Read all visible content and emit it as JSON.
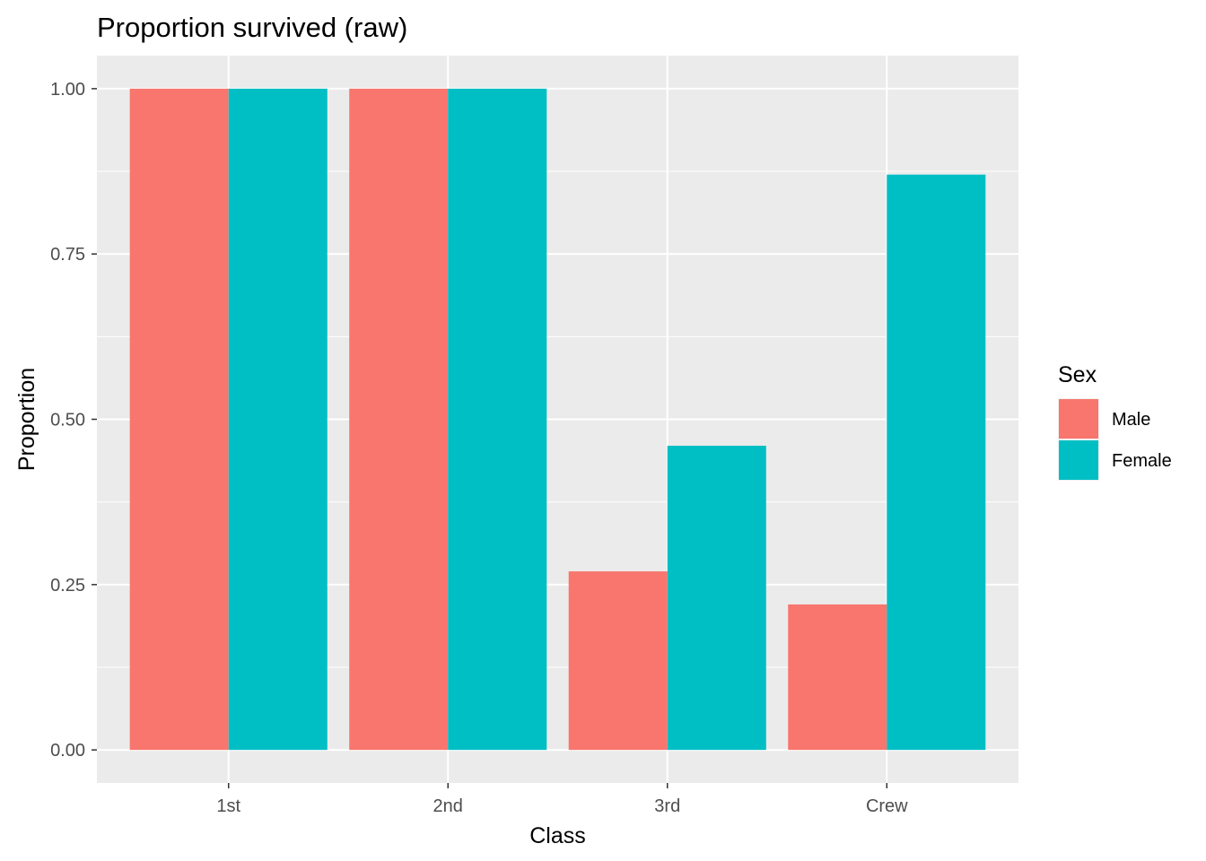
{
  "chart_data": {
    "type": "bar",
    "title": "Proportion survived (raw)",
    "xlabel": "Class",
    "ylabel": "Proportion",
    "categories": [
      "1st",
      "2nd",
      "3rd",
      "Crew"
    ],
    "series": [
      {
        "name": "Male",
        "color": "#F8766D",
        "values": [
          1.0,
          1.0,
          0.27,
          0.22
        ]
      },
      {
        "name": "Female",
        "color": "#00BFC4",
        "values": [
          1.0,
          1.0,
          0.46,
          0.87
        ]
      }
    ],
    "ylim": [
      -0.05,
      1.05
    ],
    "yticks": [
      {
        "value": 0.0,
        "label": "0.00"
      },
      {
        "value": 0.25,
        "label": "0.25"
      },
      {
        "value": 0.5,
        "label": "0.50"
      },
      {
        "value": 0.75,
        "label": "0.75"
      },
      {
        "value": 1.0,
        "label": "1.00"
      }
    ],
    "grid": true,
    "legend": {
      "title": "Sex",
      "placement": "right"
    },
    "colors": {
      "panel": "#EBEBEB",
      "gridline": "#FFFFFF"
    }
  }
}
